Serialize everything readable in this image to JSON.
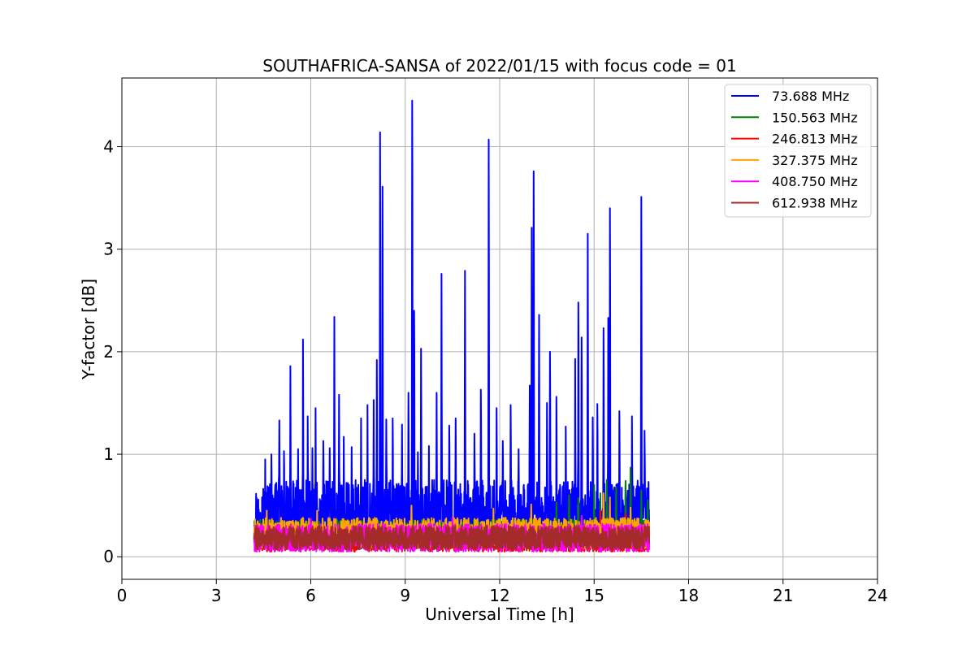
{
  "chart_data": {
    "type": "line",
    "title": "SOUTHAFRICA-SANSA of 2022/01/15 with focus code = 01",
    "xlabel": "Universal Time [h]",
    "ylabel": "Y-factor [dB]",
    "xlim": [
      0,
      24
    ],
    "ylim": [
      -0.22,
      4.67
    ],
    "xticks": [
      "0",
      "3",
      "6",
      "9",
      "12",
      "15",
      "18",
      "21",
      "24"
    ],
    "yticks": [
      "0",
      "1",
      "2",
      "3",
      "4"
    ],
    "grid": true,
    "legend_position": "top-right",
    "time_range": [
      4.2,
      16.75
    ],
    "series": [
      {
        "name": " 73.688 MHz",
        "color": "#0000ff",
        "baseline": [
          0.15,
          0.75
        ],
        "peaks": [
          [
            4.4,
            0.43
          ],
          [
            4.55,
            0.95
          ],
          [
            4.75,
            1.0
          ],
          [
            5.0,
            1.33
          ],
          [
            5.15,
            1.03
          ],
          [
            5.35,
            1.86
          ],
          [
            5.6,
            1.05
          ],
          [
            5.75,
            2.12
          ],
          [
            5.9,
            1.37
          ],
          [
            6.05,
            1.06
          ],
          [
            6.15,
            1.45
          ],
          [
            6.4,
            1.13
          ],
          [
            6.6,
            1.06
          ],
          [
            6.75,
            2.34
          ],
          [
            6.9,
            1.58
          ],
          [
            7.05,
            1.17
          ],
          [
            7.3,
            1.07
          ],
          [
            7.6,
            1.35
          ],
          [
            7.8,
            1.48
          ],
          [
            8.0,
            1.53
          ],
          [
            8.1,
            1.92
          ],
          [
            8.2,
            4.14
          ],
          [
            8.28,
            3.61
          ],
          [
            8.4,
            1.34
          ],
          [
            8.6,
            1.35
          ],
          [
            8.9,
            1.29
          ],
          [
            9.1,
            1.6
          ],
          [
            9.22,
            4.45
          ],
          [
            9.28,
            2.4
          ],
          [
            9.4,
            1.02
          ],
          [
            9.5,
            2.03
          ],
          [
            9.75,
            1.08
          ],
          [
            10.0,
            1.6
          ],
          [
            10.15,
            2.76
          ],
          [
            10.4,
            1.28
          ],
          [
            10.6,
            1.35
          ],
          [
            10.9,
            2.79
          ],
          [
            11.2,
            1.2
          ],
          [
            11.4,
            1.63
          ],
          [
            11.65,
            4.07
          ],
          [
            11.9,
            1.45
          ],
          [
            12.1,
            1.13
          ],
          [
            12.35,
            1.48
          ],
          [
            12.6,
            1.05
          ],
          [
            12.95,
            1.67
          ],
          [
            13.02,
            3.21
          ],
          [
            13.08,
            3.76
          ],
          [
            13.25,
            2.36
          ],
          [
            13.5,
            1.5
          ],
          [
            13.6,
            2.0
          ],
          [
            13.8,
            1.56
          ],
          [
            14.1,
            1.27
          ],
          [
            14.4,
            1.93
          ],
          [
            14.5,
            2.48
          ],
          [
            14.6,
            2.14
          ],
          [
            14.8,
            3.15
          ],
          [
            14.95,
            1.36
          ],
          [
            15.1,
            1.49
          ],
          [
            15.3,
            2.23
          ],
          [
            15.45,
            2.33
          ],
          [
            15.5,
            3.4
          ],
          [
            15.8,
            1.42
          ],
          [
            16.2,
            1.37
          ],
          [
            16.5,
            3.51
          ],
          [
            16.6,
            1.23
          ]
        ]
      },
      {
        "name": "150.563 MHz",
        "color": "#008000",
        "baseline": [
          0.08,
          0.36
        ],
        "peaks": [
          [
            13.8,
            0.53
          ],
          [
            14.2,
            0.6
          ],
          [
            14.5,
            0.57
          ],
          [
            15.0,
            0.7
          ],
          [
            15.2,
            0.62
          ],
          [
            15.4,
            0.75
          ],
          [
            15.7,
            0.68
          ],
          [
            16.0,
            0.74
          ],
          [
            16.15,
            0.87
          ],
          [
            16.5,
            0.65
          ],
          [
            16.7,
            0.55
          ]
        ]
      },
      {
        "name": "246.813 MHz",
        "color": "#ff0000",
        "baseline": [
          0.05,
          0.3
        ],
        "peaks": [
          [
            15.2,
            0.45
          ],
          [
            16.0,
            0.42
          ]
        ]
      },
      {
        "name": "327.375 MHz",
        "color": "#ffa500",
        "baseline": [
          0.08,
          0.38
        ],
        "peaks": [
          [
            4.6,
            0.45
          ],
          [
            6.2,
            0.45
          ],
          [
            9.2,
            0.5
          ],
          [
            11.8,
            0.47
          ],
          [
            13.0,
            0.51
          ],
          [
            15.3,
            0.62
          ],
          [
            15.5,
            0.58
          ],
          [
            16.15,
            0.48
          ]
        ]
      },
      {
        "name": "408.750 MHz",
        "color": "#ff00ff",
        "baseline": [
          0.05,
          0.32
        ],
        "peaks": [
          [
            6.0,
            0.37
          ],
          [
            10.5,
            0.38
          ],
          [
            14.6,
            0.4
          ]
        ]
      },
      {
        "name": "612.938 MHz",
        "color": "#a52a2a",
        "baseline": [
          0.07,
          0.3
        ],
        "peaks": []
      }
    ]
  }
}
